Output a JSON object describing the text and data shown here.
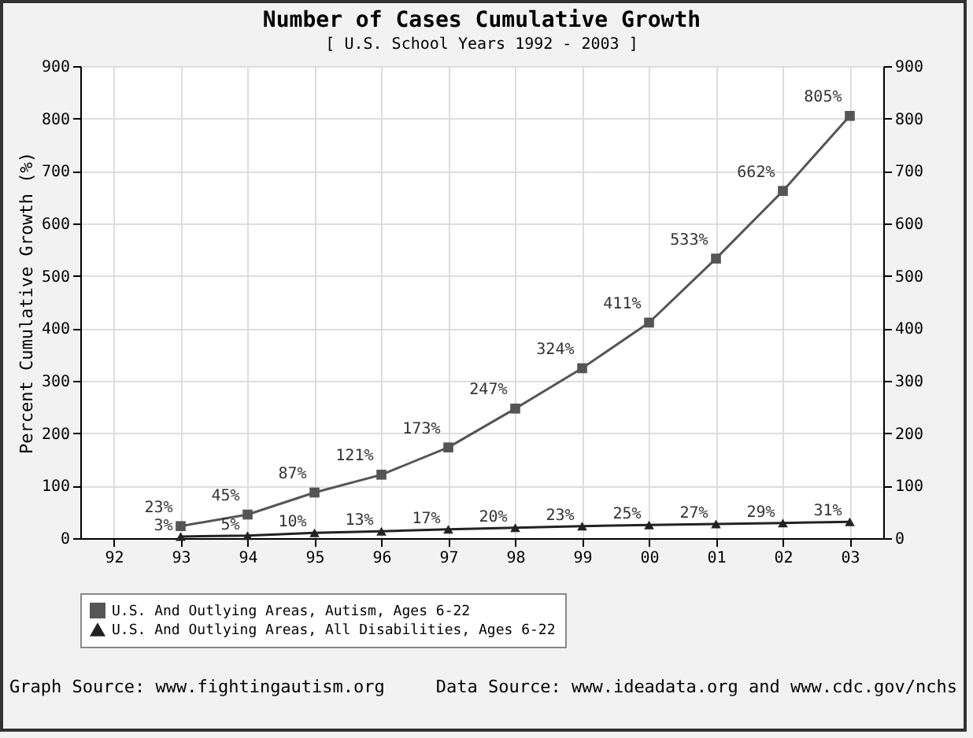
{
  "chart_data": {
    "type": "line",
    "title": "Number of Cases Cumulative Growth",
    "subtitle": "[ U.S. School Years 1992 - 2003 ]",
    "ylabel": "Percent Cumulative Growth (%)",
    "categories": [
      "92",
      "93",
      "94",
      "95",
      "96",
      "97",
      "98",
      "99",
      "00",
      "01",
      "02",
      "03"
    ],
    "series": [
      {
        "name": "U.S. And Outlying Areas, Autism, Ages 6-22",
        "color": "#555555",
        "marker": "square",
        "values": [
          null,
          23,
          45,
          87,
          121,
          173,
          247,
          324,
          411,
          533,
          662,
          805
        ],
        "value_labels": [
          null,
          "23%",
          "45%",
          "87%",
          "121%",
          "173%",
          "247%",
          "324%",
          "411%",
          "533%",
          "662%",
          "805%"
        ]
      },
      {
        "name": "U.S. And Outlying Areas, All Disabilities, Ages 6-22",
        "color": "#222222",
        "marker": "triangle",
        "values": [
          null,
          3,
          5,
          10,
          13,
          17,
          20,
          23,
          25,
          27,
          29,
          31
        ],
        "value_labels": [
          null,
          "3%",
          "5%",
          "10%",
          "13%",
          "17%",
          "20%",
          "23%",
          "25%",
          "27%",
          "29%",
          "31%"
        ]
      }
    ],
    "ylim": [
      0,
      900
    ],
    "yticks": [
      0,
      100,
      200,
      300,
      400,
      500,
      600,
      700,
      800,
      900
    ],
    "y2lim": [
      0,
      900
    ],
    "y2ticks": [
      0,
      100,
      200,
      300,
      400,
      500,
      600,
      700,
      800,
      900
    ],
    "grid": true,
    "legend": "bottom",
    "line_style": "solid",
    "annotations": [
      "Graph Source: www.fightingautism.org",
      "Data Source: www.ideadata.org and www.cdc.gov/nchs"
    ]
  }
}
